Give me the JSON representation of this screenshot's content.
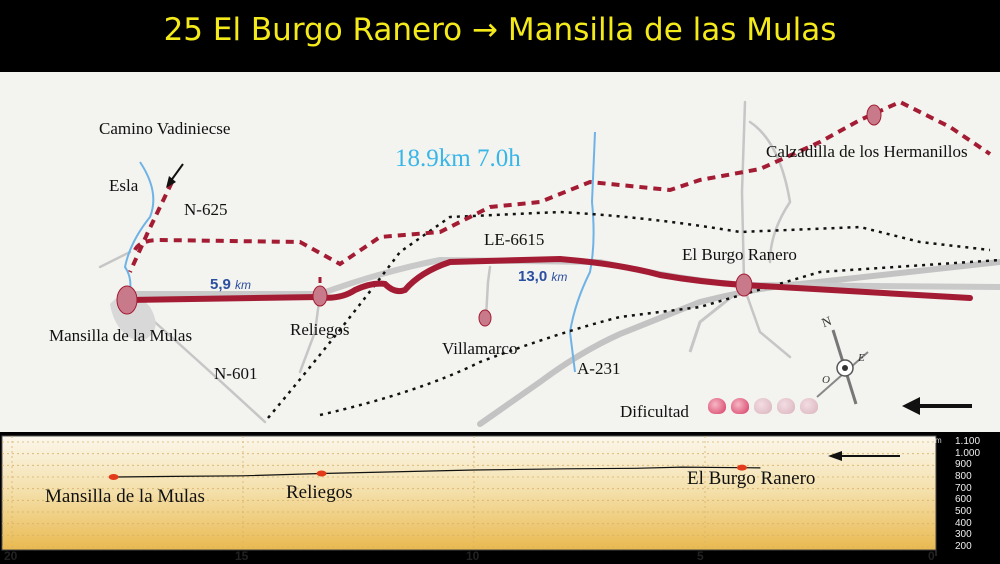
{
  "title": "25 El Burgo Ranero → Mansilla de las Mulas",
  "stats": "18.9km 7.0h",
  "places": {
    "mansilla": "Mansilla de la Mulas",
    "reliegos": "Reliegos",
    "villamarco": "Villamarco",
    "burgo": "El Burgo Ranero",
    "calzadilla": "Calzadilla de los Hermanillos",
    "esla": "Esla",
    "vadiniecse": "Camino Vadiniecse"
  },
  "roads": {
    "n625": "N-625",
    "n601": "N-601",
    "le6615": "LE-6615",
    "a231": "A-231"
  },
  "segments": [
    {
      "num": "5,9",
      "unit": "km"
    },
    {
      "num": "13,0",
      "unit": "km"
    }
  ],
  "difficulty": {
    "label": "Dificultad",
    "level": 2,
    "max": 5
  },
  "compass": {
    "n": "N",
    "e": "E",
    "o": "O"
  },
  "colors": {
    "title": "#f4ea1a",
    "route": "#a31c33",
    "stats": "#38b6e8",
    "river": "#6fb3e6",
    "alt_route": "#a31c33"
  },
  "profile": {
    "places": {
      "mansilla": "Mansilla de la Mulas",
      "reliegos": "Reliegos",
      "burgo": "El Burgo Ranero"
    },
    "x_ticks": [
      "20",
      "15",
      "10",
      "5",
      "0"
    ],
    "y_unit": "m",
    "y_ticks": [
      "1.100",
      "1.000",
      "900",
      "800",
      "700",
      "600",
      "500",
      "400",
      "300",
      "200"
    ],
    "direction": "←",
    "elevation": [
      {
        "km": 17.8,
        "m": 800
      },
      {
        "km": 16.5,
        "m": 805
      },
      {
        "km": 15.0,
        "m": 810
      },
      {
        "km": 13.3,
        "m": 830
      },
      {
        "km": 12.0,
        "m": 842
      },
      {
        "km": 10.0,
        "m": 860
      },
      {
        "km": 8.0,
        "m": 870
      },
      {
        "km": 6.5,
        "m": 875
      },
      {
        "km": 5.5,
        "m": 885
      },
      {
        "km": 4.2,
        "m": 880
      },
      {
        "km": 3.8,
        "m": 878
      }
    ]
  }
}
